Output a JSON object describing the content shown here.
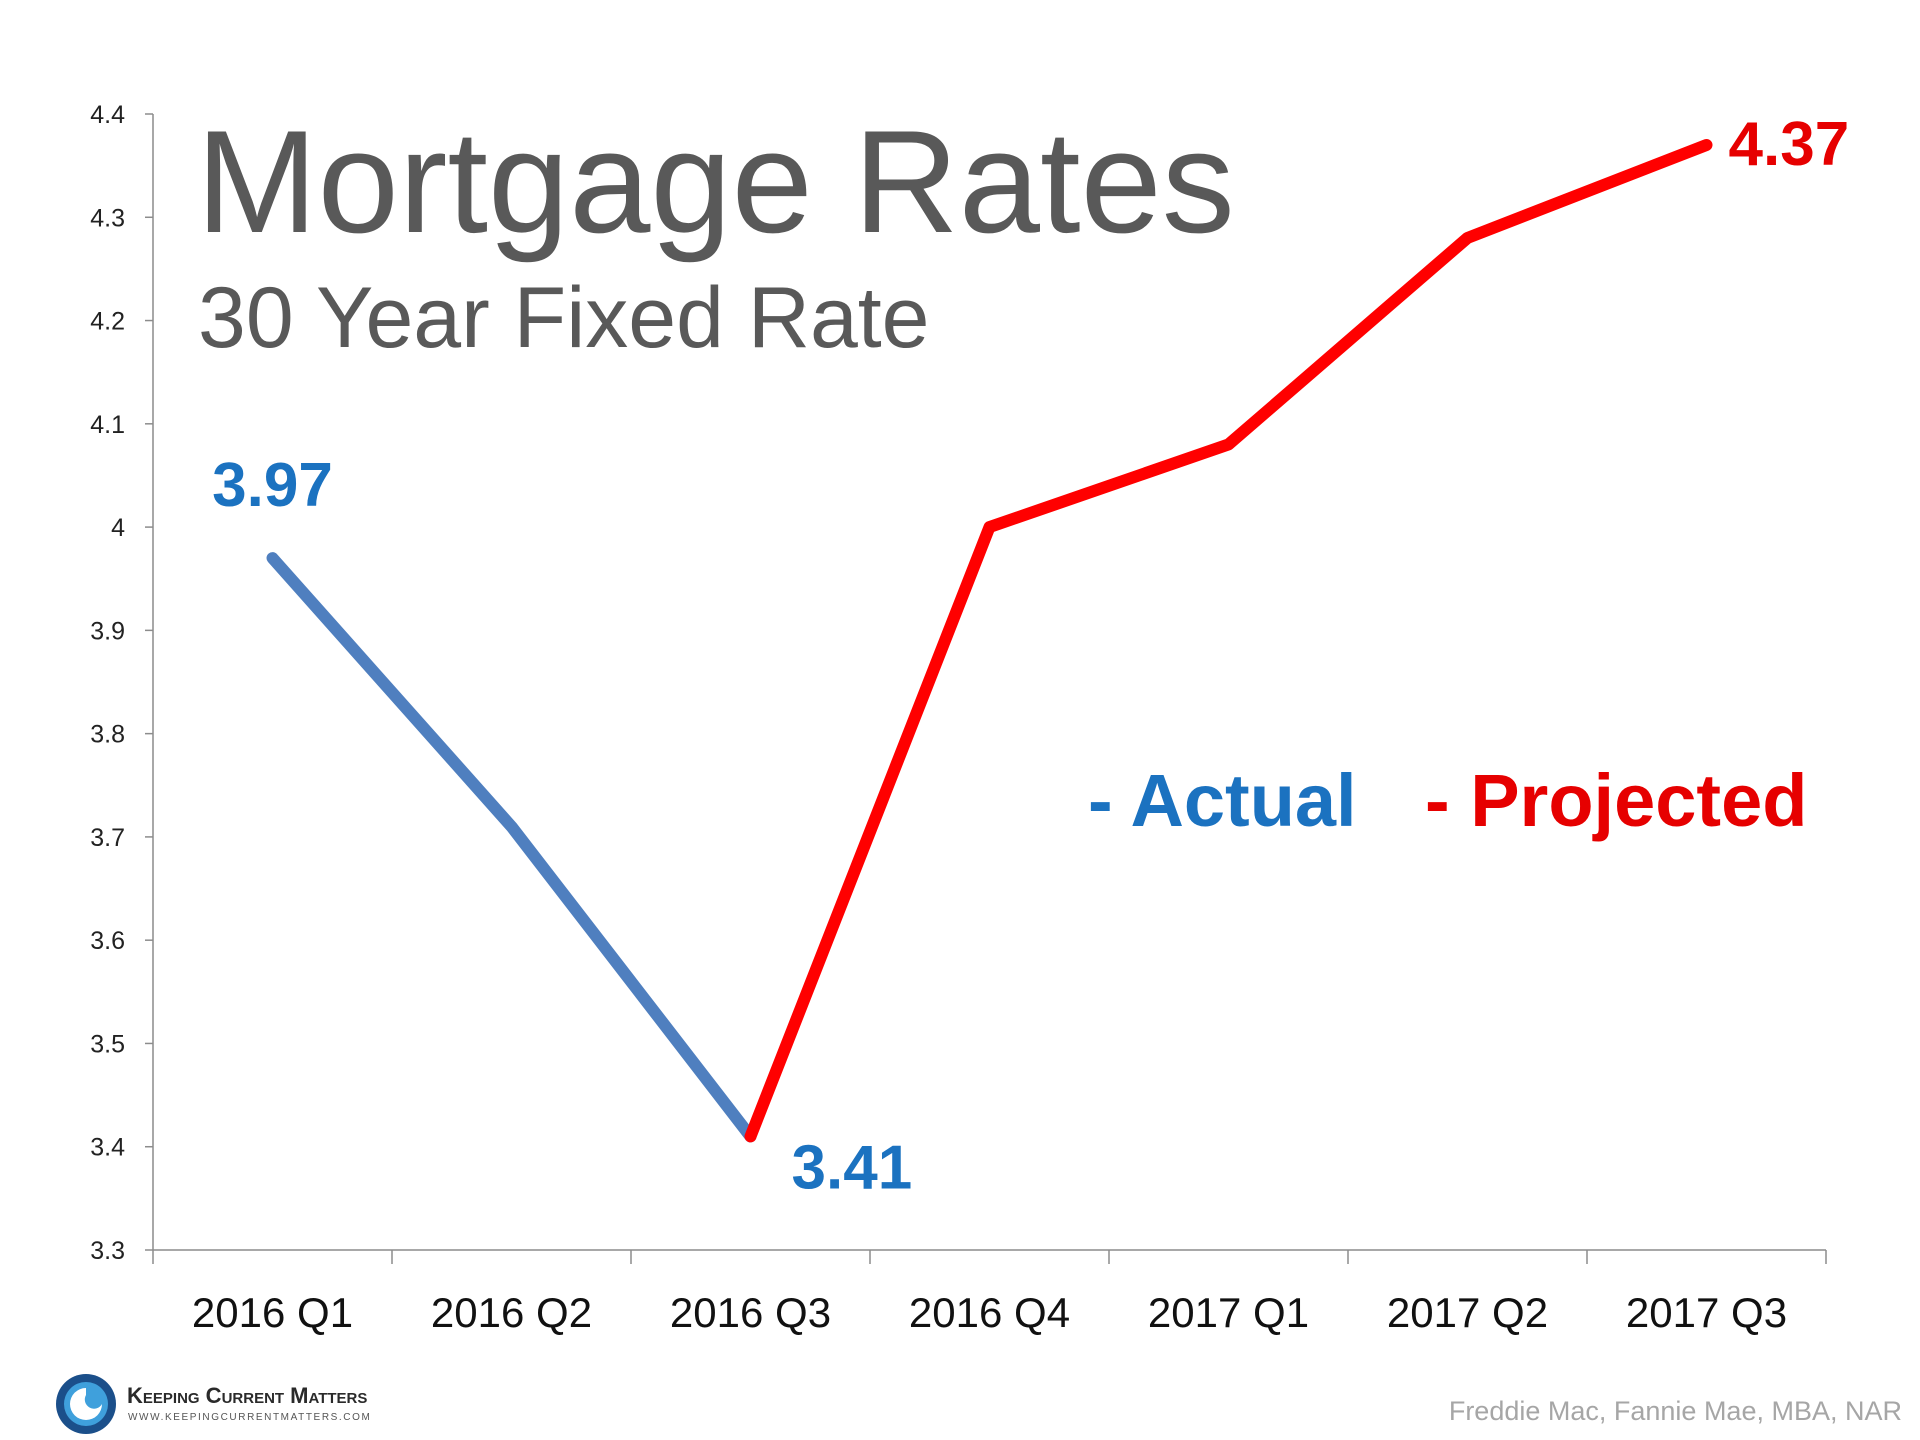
{
  "chart_data": {
    "type": "line",
    "title": "Mortgage Rates",
    "subtitle": "30 Year Fixed Rate",
    "categories": [
      "2016 Q1",
      "2016 Q2",
      "2016 Q3",
      "2016 Q4",
      "2017 Q1",
      "2017 Q2",
      "2017 Q3"
    ],
    "series": [
      {
        "name": "- Actual",
        "color": "#4f7fbf",
        "label_color": "#1b72c0",
        "values": [
          3.97,
          3.71,
          3.41,
          null,
          null,
          null,
          null
        ],
        "value_labels": [
          "3.97",
          null,
          "3.41",
          null,
          null,
          null,
          null
        ]
      },
      {
        "name": "- Projected",
        "color": "#ff0000",
        "label_color": "#e60000",
        "values": [
          null,
          null,
          3.41,
          4.0,
          4.08,
          4.28,
          4.37
        ],
        "value_labels": [
          null,
          null,
          null,
          null,
          null,
          null,
          "4.37"
        ]
      }
    ],
    "ylim": [
      3.3,
      4.4
    ],
    "yticks": [
      3.3,
      3.4,
      3.5,
      3.6,
      3.7,
      3.8,
      3.9,
      4,
      4.1,
      4.2,
      4.3,
      4.4
    ],
    "grid": false,
    "source": "Freddie Mac, Fannie Mae, MBA, NAR",
    "logo": {
      "name": "Keeping Current Matters",
      "url": "WWW.KEEPINGCURRENTMATTERS.COM"
    }
  }
}
